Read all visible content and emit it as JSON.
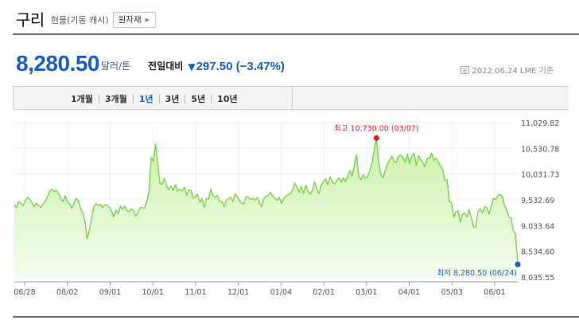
{
  "header": {
    "title": "구리",
    "subtitle": "현물(기동 캐시)",
    "raw_button": "원자재"
  },
  "price": {
    "value": "8,280.50",
    "unit": "달러/톤",
    "change_label": "전일대비",
    "change_arrow": "▼",
    "change_value": "297.50 (−3.47%)",
    "date_text": "2022.06.24 LME 기준"
  },
  "periods": {
    "tab_1m": "1개월",
    "tab_3m": "3개월",
    "tab_1y": "1년",
    "tab_3y": "3년",
    "tab_5y": "5년",
    "tab_10y": "10년",
    "active": "1년"
  },
  "colors": {
    "accent": "#1a5ec9",
    "line": "#6fcf3f",
    "max_marker": "#e0161f",
    "min_marker": "#1a5ec9"
  },
  "chart_data": {
    "type": "area",
    "x_tick_labels": [
      "06/28",
      "08/02",
      "09/01",
      "10/01",
      "11/01",
      "12/01",
      "01/04",
      "02/01",
      "03/01",
      "04/01",
      "05/03",
      "06/01"
    ],
    "y_tick_labels": [
      "11,029.82",
      "10,530.78",
      "10,031.73",
      "9,532.69",
      "9,033.64",
      "8,534.60",
      "8,035.55"
    ],
    "ylim": [
      8035.55,
      11029.82
    ],
    "max_label": "최고 10,730.00 (03/07)",
    "min_label": "최저 8,280.50 (06/24)",
    "max_value": 10730.0,
    "min_value": 8280.5,
    "values": [
      9440,
      9380,
      9500,
      9470,
      9420,
      9520,
      9580,
      9540,
      9480,
      9400,
      9470,
      9420,
      9380,
      9460,
      9500,
      9590,
      9700,
      9740,
      9690,
      9720,
      9660,
      9560,
      9500,
      9610,
      9500,
      9460,
      9370,
      9460,
      9560,
      9520,
      9370,
      9280,
      9120,
      8780,
      8950,
      9170,
      9400,
      9460,
      9420,
      9450,
      9380,
      9440,
      9430,
      9390,
      9320,
      9200,
      9330,
      9270,
      9410,
      9350,
      9410,
      9330,
      9300,
      9360,
      9330,
      9210,
      9290,
      9380,
      9380,
      9370,
      9500,
      9700,
      10350,
      10280,
      10620,
      10200,
      9850,
      9840,
      9950,
      9800,
      9730,
      9800,
      9720,
      9830,
      9700,
      9740,
      9700,
      9780,
      9620,
      9720,
      9720,
      9560,
      9600,
      9640,
      9480,
      9560,
      9380,
      9560,
      9550,
      9740,
      9620,
      9580,
      9620,
      9500,
      9500,
      9400,
      9520,
      9560,
      9580,
      9500,
      9650,
      9580,
      9520,
      9460,
      9460,
      9600,
      9580,
      9540,
      9560,
      9520,
      9580,
      9480,
      9400,
      9560,
      9600,
      9620,
      9680,
      9600,
      9560,
      9520,
      9580,
      9460,
      9560,
      9600,
      9640,
      9640,
      9720,
      9860,
      9780,
      9680,
      9800,
      9650,
      9820,
      9700,
      9640,
      9720,
      9880,
      9740,
      9660,
      9820,
      9880,
      9940,
      9820,
      9980,
      9890,
      9840,
      9900,
      9960,
      9880,
      9960,
      9890,
      10000,
      10100,
      10000,
      10200,
      10400,
      10000,
      9920,
      10020,
      9950,
      9980,
      10100,
      10250,
      10500,
      10730,
      10250,
      10020,
      9960,
      10100,
      10240,
      10300,
      10380,
      10280,
      10260,
      10380,
      10400,
      10360,
      10260,
      10420,
      10240,
      10380,
      10440,
      10200,
      10390,
      10320,
      10250,
      10180,
      10340,
      10330,
      10440,
      10300,
      10340,
      10260,
      10200,
      10120,
      9900,
      9920,
      9500,
      9480,
      9200,
      9300,
      9320,
      9100,
      9260,
      9280,
      9200,
      9340,
      9180,
      9000,
      9010,
      9300,
      9360,
      9280,
      9400,
      9380,
      9260,
      9410,
      9560,
      9540,
      9620,
      9640,
      9600,
      9420,
      9340,
      9200,
      9180,
      8930,
      8870,
      8280.5
    ]
  }
}
